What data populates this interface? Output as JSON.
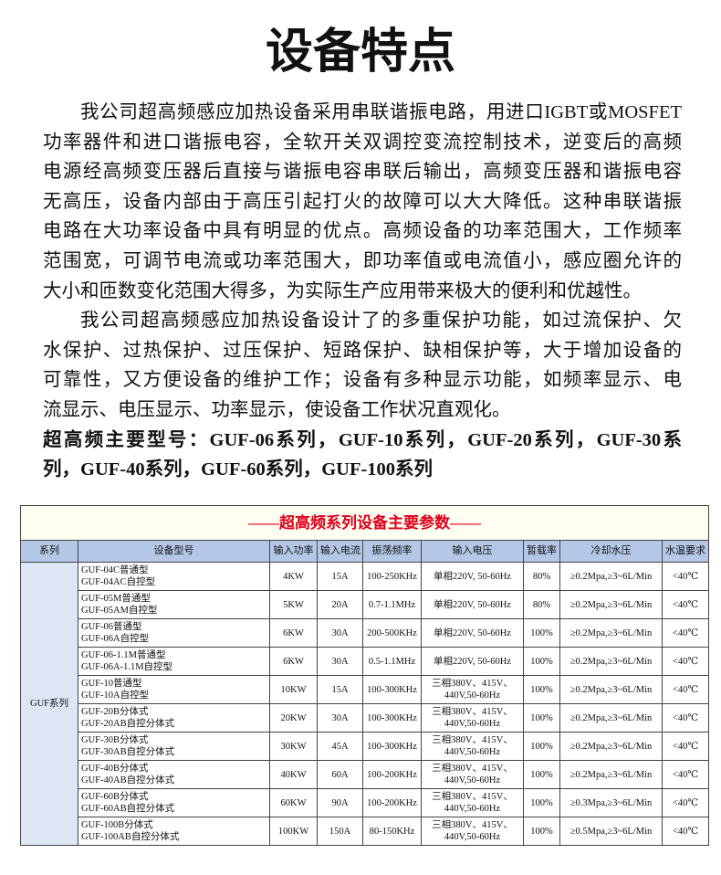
{
  "header": {
    "title": "设备特点"
  },
  "intro": {
    "paragraphs": [
      [
        "我公司超高频感应加热设备采用串联谐振电路，用进口IGBT或MOSFET",
        "功率器件和进口谐振电容，全软开关双调控变流控制技术，逆变后的高频",
        "电源经高频变压器后直接与谐振电容串联后输出，高频变压器和谐振电容",
        "无高压，设备内部由于高压引起打火的故障可以大大降低。这种串联谐振",
        "电路在大功率设备中具有明显的优点。高频设备的功率范围大，工作频率",
        "范围宽，可调节电流或功率范围大，即功率值或电流值小，感应圈允许的",
        "大小和匝数变化范围大得多，为实际生产应用带来极大的便利和优越性。"
      ],
      [
        "我公司超高频感应加热设备设计了的多重保护功能，如过流保护、欠",
        "水保护、过热保护、过压保护、短路保护、缺相保护等，大于增加设备的",
        "可靠性，又方便设备的维护工作；设备有多种显示功能，如频率显示、电",
        "流显示、电压显示、功率显示，使设备工作状况直观化。"
      ]
    ],
    "models_note": [
      "超高频主要型号：GUF-06系列，GUF-10系列，GUF-20系列，GUF-30系",
      "列，GUF-40系列，GUF-60系列，GUF-100系列"
    ]
  },
  "table": {
    "title": "——超高频系列设备主要参数——",
    "columns": [
      "系列",
      "设备型号",
      "输入功率",
      "输入电流",
      "振荡频率",
      "输入电压",
      "暂载率",
      "冷却水压",
      "水温要求"
    ],
    "series": "GUF系列",
    "rows": [
      {
        "models": [
          "GUF-04C普通型",
          "GUF-04AC自控型"
        ],
        "power": "4KW",
        "current": "15A",
        "frequency": "100-250KHz",
        "voltage": [
          "单相220V, 50-60Hz"
        ],
        "duty": "80%",
        "pressure": "≥0.2Mpa,≥3~6L/Min",
        "water_temp": "<40℃"
      },
      {
        "models": [
          "GUF-05M普通型",
          "GUF-05AM自控型"
        ],
        "power": "5KW",
        "current": "20A",
        "frequency": "0.7-1.1MHz",
        "voltage": [
          "单相220V, 50-60Hz"
        ],
        "duty": "80%",
        "pressure": "≥0.2Mpa,≥3~6L/Min",
        "water_temp": "<40℃"
      },
      {
        "models": [
          "GUF-06普通型",
          "GUF-06A自控型"
        ],
        "power": "6KW",
        "current": "30A",
        "frequency": "200-500KHz",
        "voltage": [
          "单相220V, 50-60Hz"
        ],
        "duty": "100%",
        "pressure": "≥0.2Mpa,≥3~6L/Min",
        "water_temp": "<40℃"
      },
      {
        "models": [
          "GUF-06-1.1M普通型",
          "GUF-06A-1.1M自控型"
        ],
        "power": "6KW",
        "current": "30A",
        "frequency": "0.5-1.1MHz",
        "voltage": [
          "单相220V, 50-60Hz"
        ],
        "duty": "100%",
        "pressure": "≥0.2Mpa,≥3~6L/Min",
        "water_temp": "<40℃"
      },
      {
        "models": [
          "GUF-10普通型",
          "GUF-10A自控型"
        ],
        "power": "10KW",
        "current": "15A",
        "frequency": "100-300KHz",
        "voltage": [
          "三相380V、415V、",
          "440V,50-60Hz"
        ],
        "duty": "100%",
        "pressure": "≥0.2Mpa,≥3~6L/Min",
        "water_temp": "<40℃"
      },
      {
        "models": [
          "GUF-20B分体式",
          "GUF-20AB自控分体式"
        ],
        "power": "20KW",
        "current": "30A",
        "frequency": "100-300KHz",
        "voltage": [
          "三相380V、415V、",
          "440V,50-60Hz"
        ],
        "duty": "100%",
        "pressure": "≥0.2Mpa,≥3~6L/Min",
        "water_temp": "<40℃"
      },
      {
        "models": [
          "GUF-30B分体式",
          "GUF-30AB自控分体式"
        ],
        "power": "30KW",
        "current": "45A",
        "frequency": "100-300KHz",
        "voltage": [
          "三相380V、415V、",
          "440V,50-60Hz"
        ],
        "duty": "100%",
        "pressure": "≥0.2Mpa,≥3~6L/Min",
        "water_temp": "<40℃"
      },
      {
        "models": [
          "GUF-40B分体式",
          "GUF-40AB自控分体式"
        ],
        "power": "40KW",
        "current": "60A",
        "frequency": "100-200KHz",
        "voltage": [
          "三相380V、415V、",
          "440V,50-60Hz"
        ],
        "duty": "100%",
        "pressure": "≥0.2Mpa,≥3~6L/Min",
        "water_temp": "<40℃"
      },
      {
        "models": [
          "GUF-60B分体式",
          "GUF-60AB自控分体式"
        ],
        "power": "60KW",
        "current": "90A",
        "frequency": "100-200KHz",
        "voltage": [
          "三相380V、415V、",
          "440V,50-60Hz"
        ],
        "duty": "100%",
        "pressure": "≥0.3Mpa,≥3~6L/Min",
        "water_temp": "<40℃"
      },
      {
        "models": [
          "GUF-100B分体式",
          "GUF-100AB自控分体式"
        ],
        "power": "100KW",
        "current": "150A",
        "frequency": "80-150KHz",
        "voltage": [
          "三相380V、415V、",
          "440V,50-60Hz"
        ],
        "duty": "100%",
        "pressure": "≥0.5Mpa,≥3~6L/Min",
        "water_temp": "<40℃"
      }
    ]
  }
}
